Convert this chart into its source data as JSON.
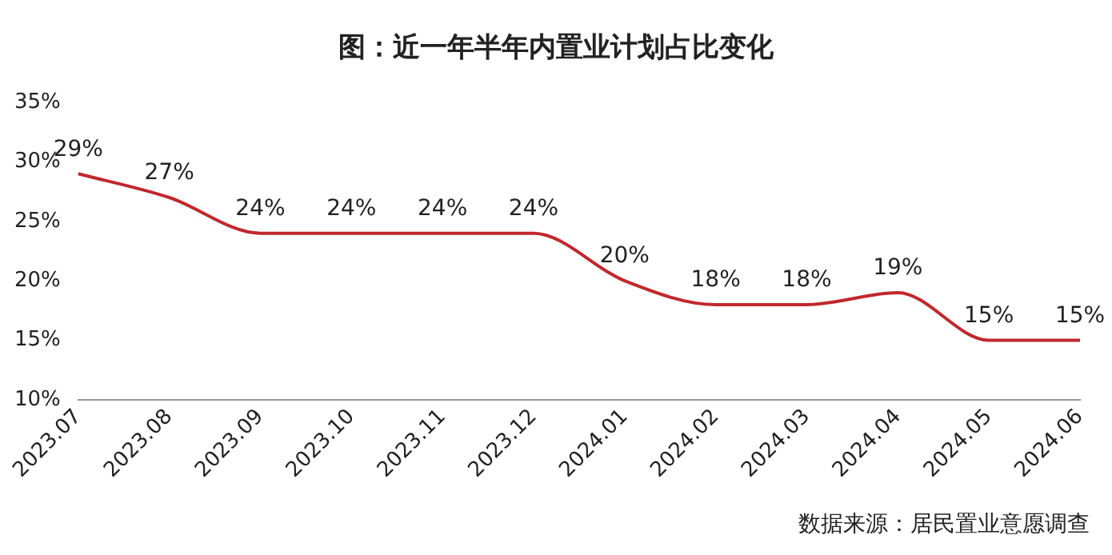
{
  "chart_data": {
    "type": "line",
    "title": "图：近一年半年内置业计划占比变化",
    "categories": [
      "2023.07",
      "2023.08",
      "2023.09",
      "2023.10",
      "2023.11",
      "2023.12",
      "2024.01",
      "2024.02",
      "2024.03",
      "2024.04",
      "2024.05",
      "2024.06"
    ],
    "series": [
      {
        "color": "#c0282d",
        "values": [
          29,
          27,
          24,
          24,
          24,
          24,
          20,
          18,
          18,
          19,
          15,
          15
        ],
        "value_labels": [
          "29%",
          "27%",
          "24%",
          "24%",
          "24%",
          "24%",
          "20%",
          "18%",
          "18%",
          "19%",
          "15%",
          "15%"
        ]
      }
    ],
    "ylim": [
      10,
      35
    ],
    "yticks": [
      {
        "value": 10,
        "label": "10%"
      },
      {
        "value": 15,
        "label": "15%"
      },
      {
        "value": 20,
        "label": "20%"
      },
      {
        "value": 25,
        "label": "25%"
      },
      {
        "value": 30,
        "label": "30%"
      },
      {
        "value": 35,
        "label": "35%"
      }
    ],
    "grid": false,
    "legend": false,
    "marker": "none",
    "line_style": "solid",
    "annotations": [
      "数据来源：居民置业意愿调查"
    ]
  }
}
